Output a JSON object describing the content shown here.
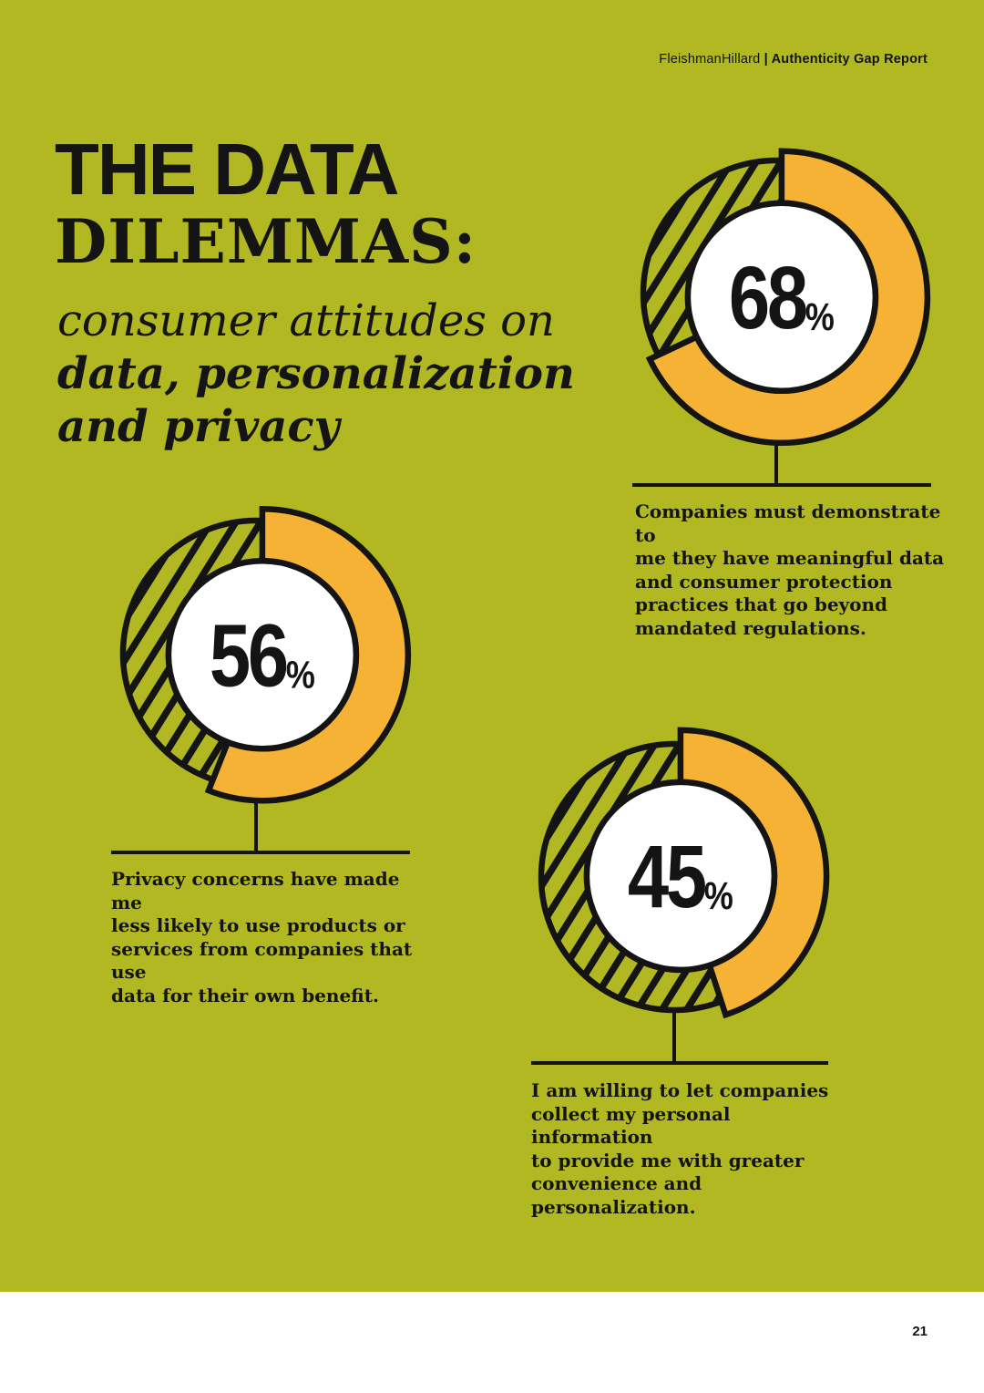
{
  "page": {
    "background_color": "#B1B821",
    "footer_page_number": "21"
  },
  "header": {
    "brand": "FleishmanHillard",
    "separator": " | ",
    "report_name": "Authenticity Gap Report"
  },
  "title": {
    "heading_line1": "THE DATA",
    "heading_line2": "DILEMMAS:",
    "subtitle_line1": "consumer attitudes on",
    "subtitle_line2": "data, personalization",
    "subtitle_line3": "and privacy"
  },
  "chart_data": {
    "type": "pie",
    "subtype": "donut",
    "title": "The Data Dilemmas: consumer attitudes on data, personalization and privacy",
    "unit": "%",
    "direction": "clockwise",
    "start_angle": "12 o'clock",
    "colors": {
      "filled_segment": "#F5B234",
      "remainder_segment": "diagonal black hatch on green",
      "background": "#B1B821",
      "outline_and_text": "#141414",
      "center_circle": "#FFFFFF"
    },
    "series": [
      {
        "value": 68,
        "caption": "Companies must demonstrate to\nme they have meaningful data\nand consumer protection\npractices that go beyond\nmandated regulations."
      },
      {
        "value": 56,
        "caption": "Privacy concerns have made me\nless likely to use products or\nservices from companies that use\ndata for their own benefit."
      },
      {
        "value": 45,
        "caption": "I am willing to let companies\ncollect my personal information\nto provide me with greater\nconvenience and personalization."
      }
    ]
  }
}
